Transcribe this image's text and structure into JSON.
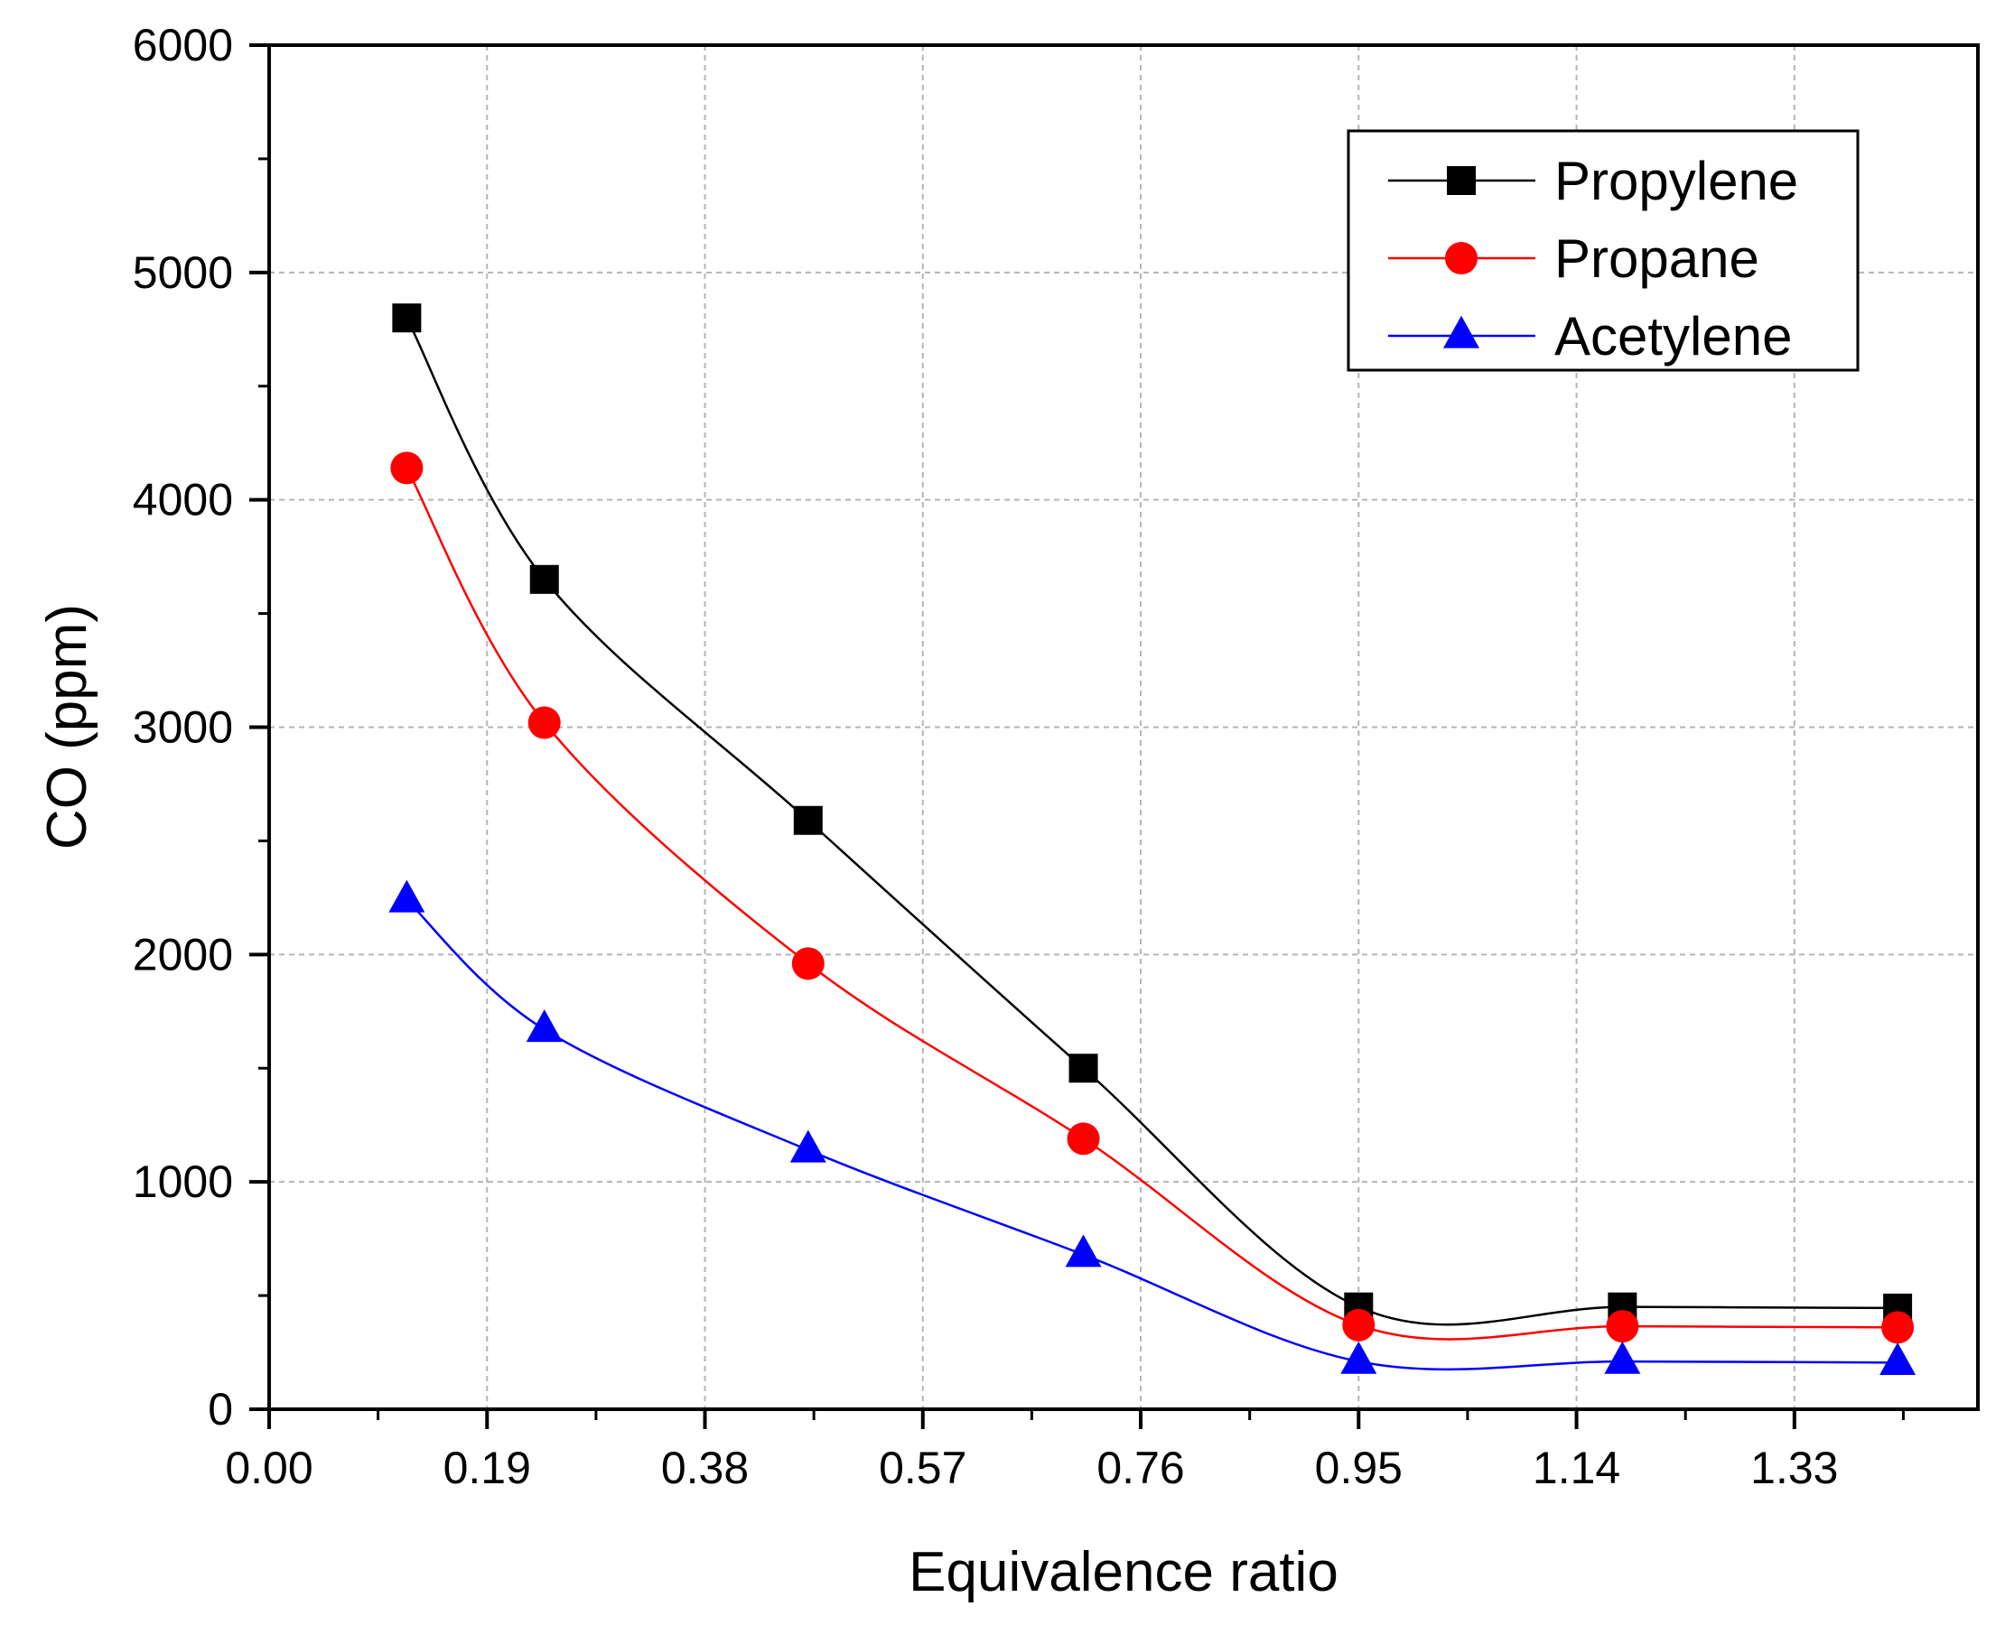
{
  "chart_data": {
    "type": "line",
    "title": "",
    "xlabel": "Equivalence ratio",
    "ylabel": "CO (ppm)",
    "xlim": [
      0.0,
      1.49
    ],
    "ylim": [
      0,
      6000
    ],
    "xticks": [
      "0.00",
      "0.19",
      "0.38",
      "0.57",
      "0.76",
      "0.95",
      "1.14",
      "1.33"
    ],
    "xtick_values": [
      0.0,
      0.19,
      0.38,
      0.57,
      0.76,
      0.95,
      1.14,
      1.33
    ],
    "yticks": [
      "0",
      "1000",
      "2000",
      "3000",
      "4000",
      "5000",
      "6000"
    ],
    "ytick_values": [
      0,
      1000,
      2000,
      3000,
      4000,
      5000,
      6000
    ],
    "grid": true,
    "legend_position": "top-right",
    "x": [
      0.12,
      0.24,
      0.47,
      0.71,
      0.95,
      1.18,
      1.42
    ],
    "series": [
      {
        "name": "Propylene",
        "color": "#000000",
        "marker": "square",
        "values": [
          4800,
          3650,
          2590,
          1500,
          450,
          450,
          445
        ]
      },
      {
        "name": "Propane",
        "color": "#ff0000",
        "marker": "circle",
        "values": [
          4140,
          3020,
          1960,
          1190,
          370,
          365,
          360
        ]
      },
      {
        "name": "Acetylene",
        "color": "#0000ff",
        "marker": "triangle",
        "values": [
          2240,
          1670,
          1140,
          680,
          210,
          210,
          205
        ]
      }
    ]
  }
}
